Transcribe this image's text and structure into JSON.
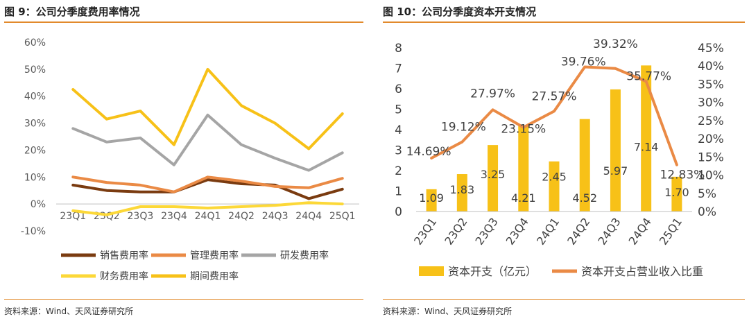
{
  "left": {
    "title": "图 9：公司分季度费用率情况",
    "source": "资料来源：Wind、天风证券研究所",
    "chart_data": {
      "type": "line",
      "categories": [
        "23Q1",
        "23Q2",
        "23Q3",
        "23Q4",
        "24Q1",
        "24Q2",
        "24Q3",
        "24Q4",
        "25Q1"
      ],
      "ylim": [
        -10,
        60
      ],
      "yticks": [
        "60%",
        "50%",
        "40%",
        "30%",
        "20%",
        "10%",
        "0%",
        "-10%"
      ],
      "legend_position": "bottom",
      "series": [
        {
          "name": "销售费用率",
          "color": "#7a3b10",
          "values": [
            7,
            5,
            4.5,
            4.5,
            9,
            7.5,
            7,
            2,
            5.5
          ]
        },
        {
          "name": "管理费用率",
          "color": "#ea8a45",
          "values": [
            10,
            8,
            7,
            4.5,
            10,
            8.5,
            6.5,
            6,
            9.5
          ]
        },
        {
          "name": "研发费用率",
          "color": "#a5a5a5",
          "values": [
            28,
            23,
            24.5,
            14.5,
            33,
            22,
            17,
            12.5,
            19
          ]
        },
        {
          "name": "财务费用率",
          "color": "#fcd838",
          "values": [
            -2.5,
            -4,
            -1,
            -1,
            -1.5,
            -1,
            -0.5,
            0.5,
            0
          ]
        },
        {
          "name": "期间费用率",
          "color": "#f7c118",
          "values": [
            42.5,
            31.5,
            34.5,
            22,
            50,
            36.5,
            30,
            20.5,
            33.5
          ]
        }
      ]
    }
  },
  "right": {
    "title": "图 10：公司分季度资本开支情况",
    "source": "资料来源：Wind、天风证券研究所",
    "chart_data": {
      "type": "bar",
      "categories": [
        "23Q1",
        "23Q2",
        "23Q3",
        "23Q4",
        "24Q1",
        "24Q2",
        "24Q3",
        "24Q4",
        "25Q1"
      ],
      "ylim_left": [
        0,
        8
      ],
      "ylim_right": [
        0,
        45
      ],
      "yticks_left": [
        "8",
        "7",
        "6",
        "5",
        "4",
        "3",
        "2",
        "1",
        "0"
      ],
      "yticks_right": [
        "45%",
        "40%",
        "35%",
        "30%",
        "25%",
        "20%",
        "15%",
        "10%",
        "5%",
        "0%"
      ],
      "legend_position": "bottom",
      "series": [
        {
          "name": "资本开支（亿元）",
          "color": "#f7c118",
          "values": [
            1.09,
            1.83,
            3.25,
            4.21,
            2.45,
            4.52,
            5.97,
            7.14,
            1.7
          ],
          "labels": [
            "1.09",
            "1.83",
            "3.25",
            "4.21",
            "2.45",
            "4.52",
            "5.97",
            "7.14",
            "1.70"
          ]
        },
        {
          "name": "资本开支占营业收入比重",
          "color": "#ea8a45",
          "axis": "right",
          "values": [
            14.69,
            19.12,
            27.97,
            23.15,
            27.57,
            39.76,
            39.32,
            35.77,
            12.83
          ],
          "labels": [
            "14.69%",
            "19.12%",
            "27.97%",
            "23.15%",
            "27.57%",
            "39.76%",
            "39.32%",
            "35.77%",
            "12.83%"
          ]
        }
      ]
    }
  }
}
